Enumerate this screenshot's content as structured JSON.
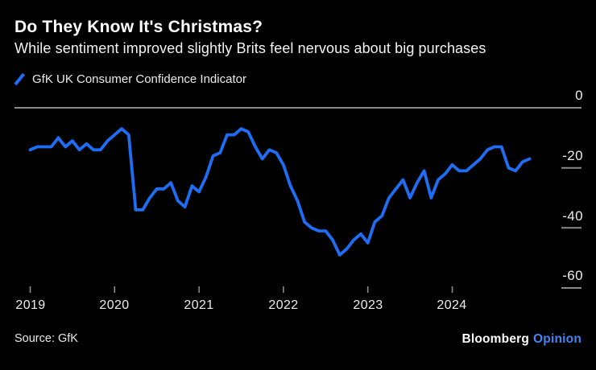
{
  "header": {
    "title": "Do They Know It's Christmas?",
    "subtitle": "While sentiment improved slightly Brits feel nervous about big purchases"
  },
  "legend": {
    "label": "GfK UK Consumer Confidence Indicator"
  },
  "chart_data": {
    "type": "line",
    "title": "GfK UK Consumer Confidence Indicator",
    "x_start": "2019-01",
    "x_end": "2024-12",
    "x_unit": "month",
    "ylim": [
      -60,
      0
    ],
    "y_ticks": [
      0,
      -20,
      -40,
      -60
    ],
    "y_tick_labels": [
      "0",
      "-20",
      "-40",
      "-60"
    ],
    "x_tick_labels": [
      "2019",
      "2020",
      "2021",
      "2022",
      "2023",
      "2024"
    ],
    "grid": "zero-line-only",
    "legend_position": "top-left",
    "line_color": "#1d6ef5",
    "grid_color": "#8a8a8a",
    "series": [
      {
        "name": "GfK UK Consumer Confidence Indicator",
        "monthly_values": [
          -14,
          -13,
          -13,
          -13,
          -10,
          -13,
          -11,
          -14,
          -12,
          -14,
          -14,
          -11,
          -9,
          -7,
          -9,
          -34,
          -34,
          -30,
          -27,
          -27,
          -25,
          -31,
          -33,
          -26,
          -28,
          -23,
          -16,
          -15,
          -9,
          -9,
          -7,
          -8,
          -13,
          -17,
          -14,
          -15,
          -19,
          -26,
          -31,
          -38,
          -40,
          -41,
          -41,
          -44,
          -49,
          -47,
          -44,
          -42,
          -45,
          -38,
          -36,
          -30,
          -27,
          -24,
          -30,
          -25,
          -21,
          -30,
          -24,
          -22,
          -19,
          -21,
          -21,
          -19,
          -17,
          -14,
          -13,
          -13,
          -20,
          -21,
          -18,
          -17
        ]
      }
    ]
  },
  "footer": {
    "source": "Source: GfK",
    "brand": "Bloomberg",
    "brand_suffix": "Opinion"
  }
}
